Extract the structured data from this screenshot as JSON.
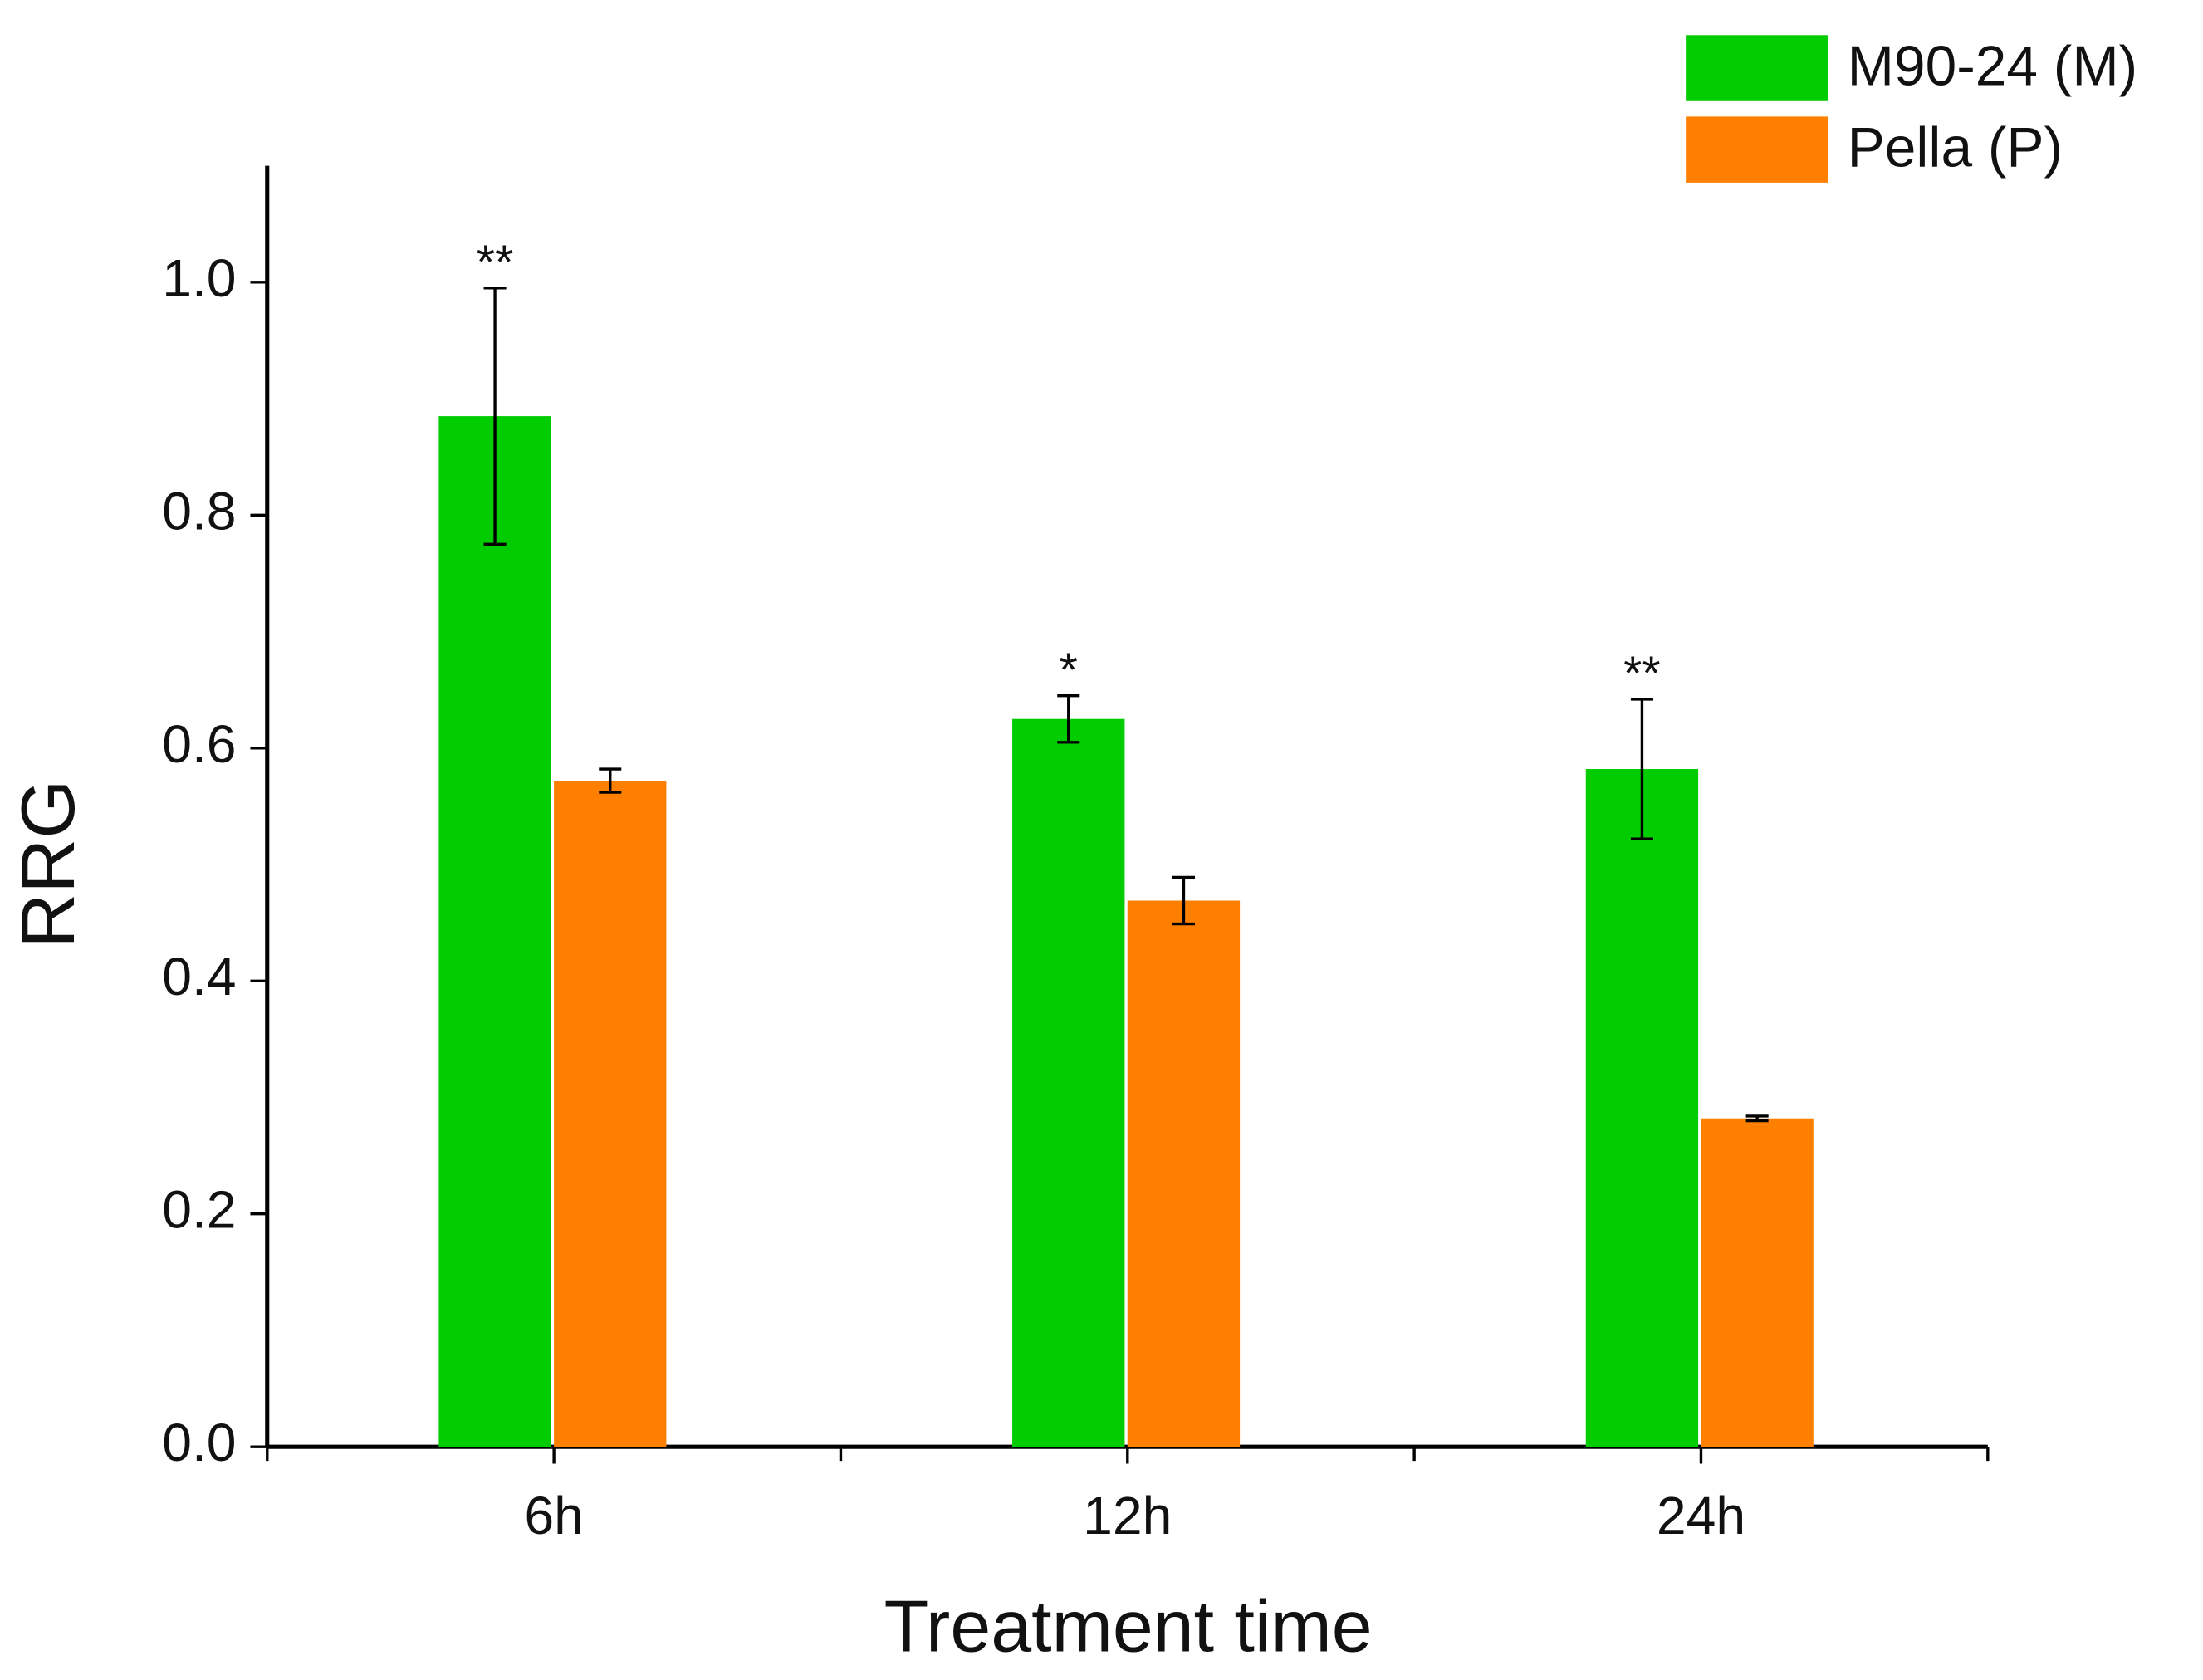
{
  "chart_data": {
    "type": "bar",
    "x_label": "Treatment time",
    "y_label": "RRG",
    "categories": [
      "6h",
      "12h",
      "24h"
    ],
    "series": [
      {
        "name": "M90-24 (M)",
        "color": "#00cc00",
        "values": [
          0.885,
          0.625,
          0.582
        ],
        "errors": [
          0.11,
          0.02,
          0.06
        ],
        "annotations": [
          "**",
          "*",
          "**"
        ]
      },
      {
        "name": "Pella (P)",
        "color": "#ff8000",
        "values": [
          0.572,
          0.469,
          0.282
        ],
        "errors": [
          0.01,
          0.02,
          0.002
        ]
      }
    ],
    "ylim": [
      0,
      1.1
    ],
    "yticks": [
      {
        "value": 0,
        "label": "0.0"
      },
      {
        "value": 0.2,
        "label": "0.2"
      },
      {
        "value": 0.4,
        "label": "0.4"
      },
      {
        "value": 0.6,
        "label": "0.6"
      },
      {
        "value": 0.8,
        "label": "0.8"
      },
      {
        "value": 1,
        "label": "1.0"
      }
    ],
    "legend": "top-right",
    "grid": false
  }
}
